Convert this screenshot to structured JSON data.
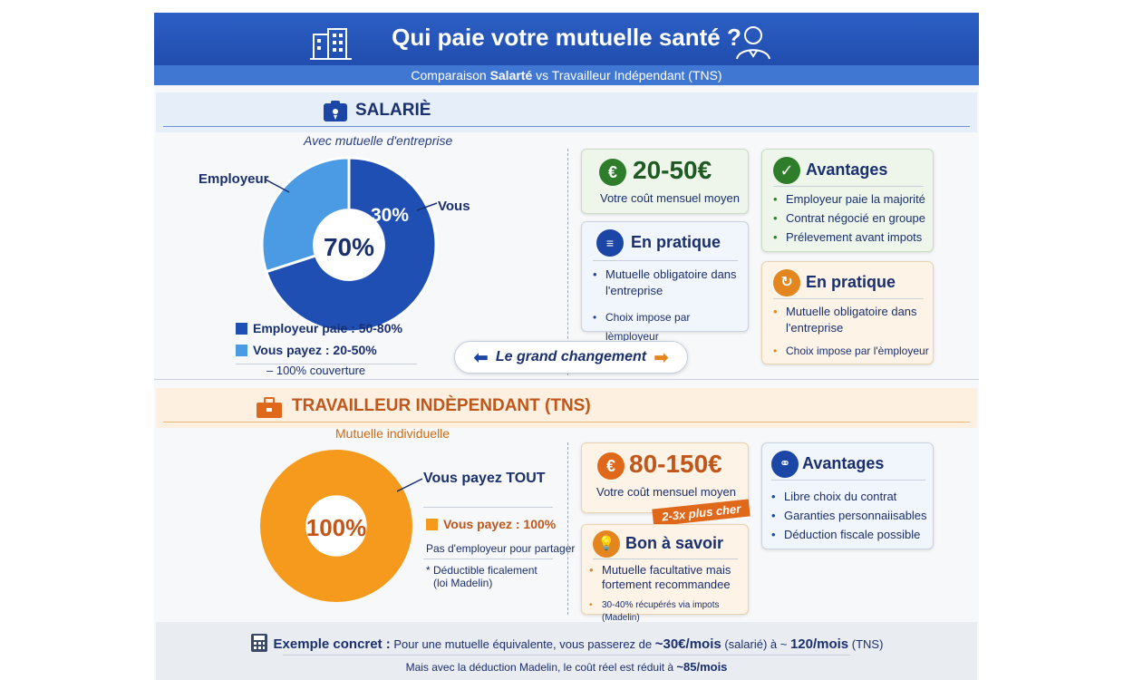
{
  "header": {
    "title": "Qui paie votre mutuelle santé ?",
    "subtitle_prefix": "Comparaison ",
    "subtitle_bold": "Salarté",
    "subtitle_suffix": " vs Travailleur Indépendant (TNS)"
  },
  "salarie": {
    "title": "SALARIÈ",
    "pie_caption": "Avec mutuelle d'entreprise",
    "pie_label_employeur": "Employeur",
    "pie_label_vous": "Vous",
    "legend": [
      {
        "label": "Employeur paie : 50-80%",
        "color": "#1f4fb3"
      },
      {
        "label": "Vous payez : 20-50%",
        "color": "#4a9be4"
      }
    ],
    "coverage_note": "– 100% couverture",
    "price": "20-50€",
    "price_caption": "Votre coût mensuel moyen",
    "pratique_title": "En pratique",
    "pratique_items": [
      "Mutuelle obligatoire dans l'entreprise",
      "Choix impose par lèmployeur"
    ],
    "avantages_title": "Avantages",
    "avantages_items": [
      "Employeur paie la majorité",
      "Contrat négocié en groupe",
      "Prélevement avant impots"
    ],
    "pratique2_title": "En pratique",
    "pratique2_items": [
      "Mutuelle obligatoire dans l'entreprise",
      "Choix impose par l'èmployeur"
    ]
  },
  "grand_changement": "Le grand changement",
  "tns": {
    "title": "TRAVAILLEUR INDÈPENDANT (TNS)",
    "pie_caption": "Mutuelle individuelle",
    "pie_label": "Vous payez TOUT",
    "legend_label": "Vous payez : 100%",
    "legend_color": "#f59a1c",
    "note1": "Pas d'employeur pour partager",
    "note2_line1": "* Déductible ficalement",
    "note2_line2": "(loi Madelin)",
    "price": "80-150€",
    "price_caption": "Votre coût mensuel moyen",
    "ribbon": "2-3x plus cher",
    "bon_title": "Bon à savoir",
    "bon_items": [
      "Mutuelle facultative mais fortement recommandee",
      "30-40% récupérés via impots (Madelin)"
    ],
    "avantages_title": "Avantages",
    "avantages_items": [
      "Libre choix du contrat",
      "Garanties personnaiisables",
      "Déduction fiscale possible"
    ]
  },
  "footer": {
    "label": "Exemple concret :",
    "text_a": " Pour une mutuelle équivalente, vous passerez de ",
    "val_a": "~30€/mois",
    "text_b": " (salarié) à ~ ",
    "val_b": "120/mois",
    "text_c": " (TNS)",
    "line2_text": "Mais avec la déduction Madelin, le coût réel est réduit à ",
    "line2_val": "~85/mois"
  },
  "chart_data": [
    {
      "type": "pie",
      "title": "Avec mutuelle d'entreprise",
      "categories": [
        "Employeur",
        "Vous"
      ],
      "values": [
        70,
        30
      ],
      "colors": [
        "#1f4fb3",
        "#4a9be4"
      ],
      "data_labels": [
        "70%",
        "30%"
      ]
    },
    {
      "type": "pie",
      "title": "Mutuelle individuelle",
      "categories": [
        "Vous payez TOUT"
      ],
      "values": [
        100
      ],
      "colors": [
        "#f59a1c"
      ],
      "data_labels": [
        "100%"
      ]
    }
  ]
}
